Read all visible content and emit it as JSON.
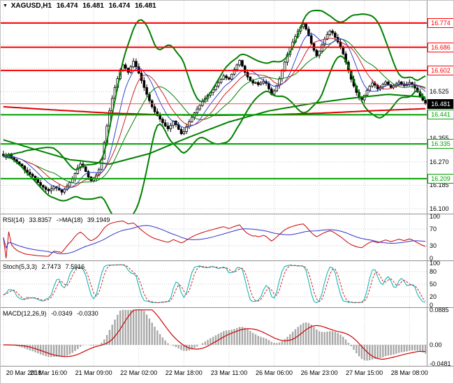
{
  "header": {
    "symbol": "XAGUSD,H1",
    "open": "16.474",
    "high": "16.481",
    "low": "16.474",
    "close": "16.481"
  },
  "colors": {
    "resistance": "#ff0000",
    "support": "#00a000",
    "bands": "#008000",
    "ma_slow": "#008000",
    "ma_long_red": "#dd0000",
    "ma_blue": "#3344cc",
    "ma_thin_red": "#cc2222",
    "rsi": "#cc0000",
    "rsi_ma": "#3333cc",
    "stoch_k": "#00b0b0",
    "stoch_d": "#cc2222",
    "macd_hist": "#a8a8a8",
    "macd_signal": "#cc0000",
    "grid": "#cdcdcd",
    "separator": "#909090",
    "current_line": "#ff5050"
  },
  "chart_data": {
    "type": "candlestick",
    "symbol": "XAGUSD",
    "timeframe": "H1",
    "price_axis": {
      "min": 16.082,
      "max": 16.855,
      "ticks": [
        "16.525",
        "16.355",
        "16.270",
        "16.185",
        "16.100"
      ],
      "grid": [
        16.78,
        16.695,
        16.61,
        16.525,
        16.44,
        16.355,
        16.27,
        16.185,
        16.1
      ]
    },
    "time_axis": {
      "labels": [
        "20 Mar 2018",
        "20 Mar 16:00",
        "21 Mar 09:00",
        "22 Mar 02:00",
        "22 Mar 18:00",
        "23 Mar 11:00",
        "26 Mar 06:00",
        "26 Mar 23:00",
        "27 Mar 15:00",
        "28 Mar 08:00"
      ],
      "bar_index": [
        0,
        17,
        34,
        51,
        68,
        85,
        102,
        119,
        136,
        153
      ]
    },
    "levels": {
      "resistance": [
        "16.774",
        "16.686",
        "16.602"
      ],
      "support": [
        "16.441",
        "16.335",
        "16.209"
      ],
      "current": "16.481"
    },
    "closes": [
      16.292,
      16.288,
      16.295,
      16.285,
      16.278,
      16.27,
      16.262,
      16.255,
      16.24,
      16.232,
      16.225,
      16.218,
      16.205,
      16.195,
      16.185,
      16.178,
      16.17,
      16.165,
      16.172,
      16.18,
      16.175,
      16.168,
      16.16,
      16.17,
      16.182,
      16.195,
      16.208,
      16.228,
      16.248,
      16.262,
      16.252,
      16.235,
      16.215,
      16.202,
      16.21,
      16.222,
      16.242,
      16.28,
      16.34,
      16.4,
      16.455,
      16.5,
      16.54,
      16.572,
      16.6,
      16.622,
      16.61,
      16.595,
      16.615,
      16.635,
      16.615,
      16.592,
      16.565,
      16.54,
      16.515,
      16.492,
      16.47,
      16.452,
      16.438,
      16.425,
      16.412,
      16.4,
      16.39,
      16.402,
      16.418,
      16.405,
      16.388,
      16.372,
      16.38,
      16.398,
      16.415,
      16.432,
      16.448,
      16.462,
      16.475,
      16.488,
      16.5,
      16.512,
      16.522,
      16.532,
      16.545,
      16.558,
      16.57,
      16.582,
      16.575,
      16.57,
      16.588,
      16.605,
      16.622,
      16.638,
      16.618,
      16.595,
      16.578,
      16.565,
      16.556,
      16.558,
      16.55,
      16.556,
      16.562,
      16.555,
      16.535,
      16.515,
      16.528,
      16.548,
      16.572,
      16.6,
      16.632,
      16.66,
      16.685,
      16.705,
      16.725,
      16.745,
      16.76,
      16.77,
      16.752,
      16.728,
      16.7,
      16.675,
      16.655,
      16.672,
      16.695,
      16.715,
      16.732,
      16.745,
      16.738,
      16.722,
      16.705,
      16.688,
      16.662,
      16.632,
      16.6,
      16.57,
      16.545,
      16.522,
      16.505,
      16.495,
      16.512,
      16.53,
      16.545,
      16.556,
      16.548,
      16.535,
      16.542,
      16.552,
      16.56,
      16.55,
      16.54,
      16.546,
      16.553,
      16.56,
      16.553,
      16.546,
      16.552,
      16.558,
      16.55,
      16.538,
      16.524,
      16.508,
      16.494,
      16.481
    ],
    "overlays": {
      "ma_red_points": [
        [
          0,
          16.47
        ],
        [
          20,
          16.458
        ],
        [
          40,
          16.447
        ],
        [
          60,
          16.441
        ],
        [
          80,
          16.439
        ],
        [
          100,
          16.441
        ],
        [
          120,
          16.447
        ],
        [
          140,
          16.456
        ],
        [
          159,
          16.463
        ]
      ],
      "ma_green_points": [
        [
          0,
          16.35
        ],
        [
          12,
          16.315
        ],
        [
          25,
          16.278
        ],
        [
          40,
          16.262
        ],
        [
          55,
          16.3
        ],
        [
          70,
          16.36
        ],
        [
          85,
          16.415
        ],
        [
          100,
          16.455
        ],
        [
          115,
          16.48
        ],
        [
          130,
          16.5
        ],
        [
          145,
          16.515
        ],
        [
          159,
          16.505
        ]
      ]
    },
    "indicators": {
      "rsi": {
        "label": "RSI(14)",
        "value": "33.8357",
        "ma_label": "->MA(18)",
        "ma_value": "39.1949",
        "levels": [
          70,
          30
        ],
        "axis": [
          "100",
          "70",
          "30",
          "0"
        ]
      },
      "stoch": {
        "label": "Stoch(5,3,3)",
        "value": "2.7473",
        "signal": "7.5916",
        "levels": [
          80,
          50,
          20
        ],
        "axis": [
          "100",
          "80",
          "50",
          "20",
          "0"
        ]
      },
      "macd": {
        "label": "MACD(12,26,9)",
        "value": "-0.0349",
        "signal": "-0.0330",
        "axis_max": "0.0885",
        "axis_zero": "0.00",
        "axis_min": "-0.0481",
        "range": [
          -0.0481,
          0.0885
        ]
      }
    }
  }
}
